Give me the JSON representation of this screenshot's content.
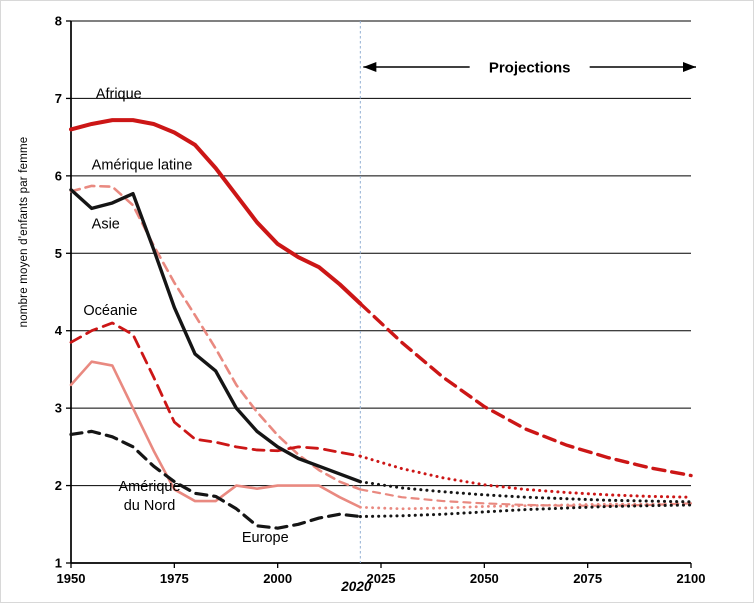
{
  "chart_data": {
    "type": "line",
    "title": "",
    "ylabel": "nombre moyen d'enfants par femme",
    "xlabel": "",
    "xlim": [
      1950,
      2100
    ],
    "ylim": [
      1,
      8
    ],
    "grid": true,
    "x_ticks": [
      "1950",
      "1975",
      "2000",
      "2025",
      "2050",
      "2075",
      "2100"
    ],
    "x_tick_years": [
      1950,
      1975,
      2000,
      2025,
      2050,
      2075,
      2100
    ],
    "y_ticks": [
      1,
      2,
      3,
      4,
      5,
      6,
      7,
      8
    ],
    "projection": {
      "start_year": 2020,
      "end_year": 2100,
      "label": "Projections",
      "divider_label": "2020",
      "divider_color": "#92aed2"
    },
    "history_years": [
      1950,
      1955,
      1960,
      1965,
      1970,
      1975,
      1980,
      1985,
      1990,
      1995,
      2000,
      2005,
      2010,
      2015,
      2020
    ],
    "projection_years": [
      2020,
      2030,
      2040,
      2050,
      2060,
      2070,
      2080,
      2090,
      2100
    ],
    "series": [
      {
        "id": "amerique-latine",
        "name": "Amérique latine",
        "color": "#e98980",
        "history_dash": "9 6",
        "history_width": 2.6,
        "projection_dash": "7 6",
        "projection_width": 2.2,
        "history": [
          5.8,
          5.87,
          5.86,
          5.62,
          5.1,
          4.62,
          4.2,
          3.77,
          3.3,
          2.95,
          2.65,
          2.4,
          2.2,
          2.05,
          1.95
        ],
        "projection": [
          1.95,
          1.85,
          1.8,
          1.77,
          1.75,
          1.74,
          1.74,
          1.75,
          1.77
        ],
        "label": {
          "text": "Amérique latine",
          "year": 1955,
          "value": 6.08,
          "anchor": "start"
        }
      },
      {
        "id": "oceanie",
        "name": "Océanie",
        "color": "#cc1616",
        "history_dash": "11 7",
        "history_width": 2.8,
        "projection_dash": "0.1 6",
        "projection_width": 3,
        "history": [
          3.85,
          4.0,
          4.1,
          3.95,
          3.4,
          2.82,
          2.6,
          2.56,
          2.5,
          2.46,
          2.45,
          2.5,
          2.48,
          2.43,
          2.38
        ],
        "projection": [
          2.38,
          2.22,
          2.1,
          2.01,
          1.95,
          1.91,
          1.88,
          1.86,
          1.85
        ],
        "label": {
          "text": "Océanie",
          "year": 1953,
          "value": 4.2,
          "anchor": "start"
        }
      },
      {
        "id": "amerique-du-nord",
        "name": "Amérique du Nord",
        "color": "#e98980",
        "history_dash": "",
        "history_width": 2.6,
        "projection_dash": "0.1 6",
        "projection_width": 2.8,
        "history": [
          3.3,
          3.6,
          3.55,
          3.0,
          2.45,
          1.95,
          1.8,
          1.8,
          2.0,
          1.96,
          2.0,
          2.0,
          2.0,
          1.85,
          1.72
        ],
        "projection": [
          1.72,
          1.7,
          1.71,
          1.73,
          1.74,
          1.75,
          1.76,
          1.76,
          1.77
        ],
        "label": {
          "lines": [
            "Amérique",
            "du Nord"
          ],
          "text": "Amérique du Nord",
          "year": 1969,
          "value": 1.93,
          "anchor": "middle"
        }
      },
      {
        "id": "europe",
        "name": "Europe",
        "color": "#151515",
        "history_dash": "11 7",
        "history_width": 3.2,
        "projection_dash": "0.1 6",
        "projection_width": 3,
        "history": [
          2.66,
          2.7,
          2.63,
          2.5,
          2.25,
          2.05,
          1.9,
          1.86,
          1.7,
          1.48,
          1.45,
          1.5,
          1.58,
          1.63,
          1.6
        ],
        "projection": [
          1.6,
          1.61,
          1.63,
          1.66,
          1.69,
          1.71,
          1.73,
          1.74,
          1.75
        ],
        "label": {
          "text": "Europe",
          "year": 1997,
          "value": 1.27,
          "anchor": "middle"
        }
      },
      {
        "id": "asie",
        "name": "Asie",
        "color": "#151515",
        "history_dash": "",
        "history_width": 3.4,
        "projection_dash": "0.1 6",
        "projection_width": 3,
        "history": [
          5.82,
          5.58,
          5.65,
          5.77,
          5.05,
          4.3,
          3.7,
          3.48,
          3.0,
          2.7,
          2.5,
          2.35,
          2.25,
          2.15,
          2.05
        ],
        "projection": [
          2.05,
          1.97,
          1.92,
          1.88,
          1.85,
          1.83,
          1.81,
          1.8,
          1.79
        ],
        "label": {
          "text": "Asie",
          "year": 1955,
          "value": 5.32,
          "anchor": "start"
        }
      },
      {
        "id": "afrique",
        "name": "Afrique",
        "color": "#cc1616",
        "history_dash": "",
        "history_width": 4,
        "projection_dash": "12 7",
        "projection_width": 3.4,
        "history": [
          6.6,
          6.67,
          6.72,
          6.72,
          6.67,
          6.56,
          6.4,
          6.1,
          5.75,
          5.4,
          5.12,
          4.95,
          4.82,
          4.6,
          4.35
        ],
        "projection": [
          4.35,
          3.85,
          3.4,
          3.02,
          2.73,
          2.52,
          2.36,
          2.23,
          2.13
        ],
        "label": {
          "text": "Afrique",
          "year": 1956,
          "value": 7.0,
          "anchor": "start"
        }
      }
    ]
  }
}
